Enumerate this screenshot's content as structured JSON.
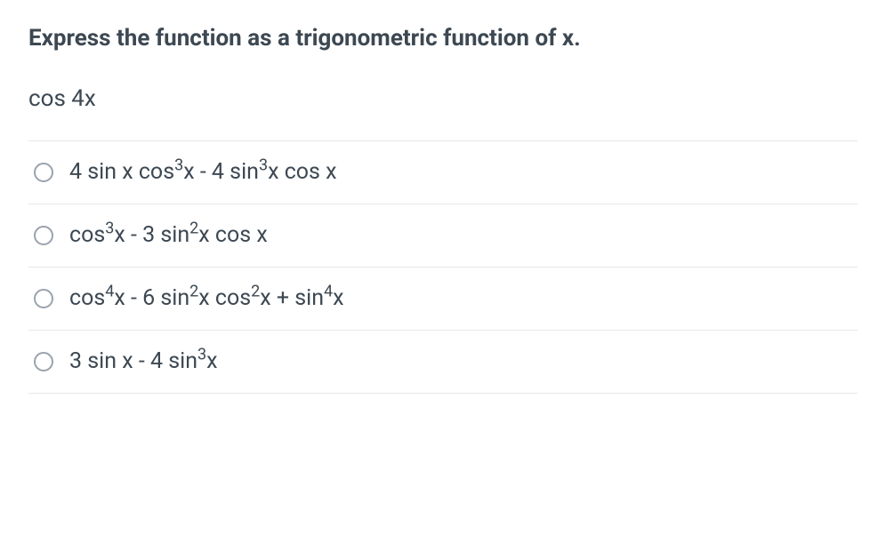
{
  "question": {
    "title": "Express the function as a trigonometric function of x.",
    "expression": "cos 4x"
  },
  "options": [
    {
      "parts": [
        "4 sin x cos",
        "3",
        "x - 4 sin",
        "3",
        "x cos x"
      ]
    },
    {
      "parts": [
        "cos",
        "3",
        "x - 3 sin",
        "2",
        "x cos x"
      ]
    },
    {
      "parts": [
        "cos",
        "4",
        "x - 6 sin",
        "2",
        "x cos",
        "2",
        "x + sin",
        "4",
        "x"
      ]
    },
    {
      "parts": [
        "3 sin x - 4 sin",
        "3",
        "x"
      ]
    }
  ],
  "colors": {
    "text": "#3d4852",
    "border": "#e5e7eb",
    "radio_border": "#9aa2ad",
    "background": "#ffffff"
  },
  "typography": {
    "title_fontsize": 26,
    "title_weight": 700,
    "body_fontsize": 25,
    "sup_scale": 0.72
  }
}
